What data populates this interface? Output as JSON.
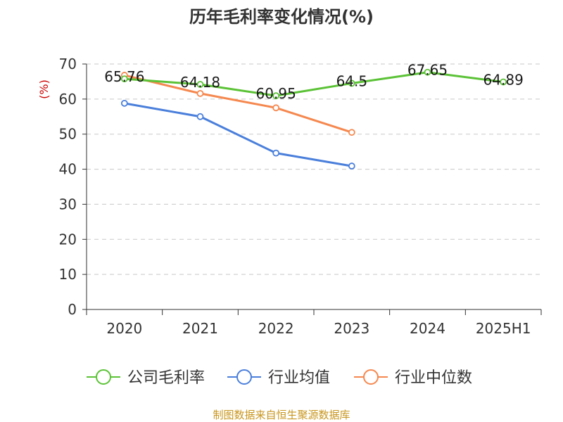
{
  "chart_data": {
    "type": "line",
    "title": "历年毛利率变化情况(%)",
    "ylabel": "(%)",
    "xlabel": "",
    "categories": [
      "2020",
      "2021",
      "2022",
      "2023",
      "2024",
      "2025H1"
    ],
    "ylim": [
      0,
      70
    ],
    "yticks": [
      0,
      10,
      20,
      30,
      40,
      50,
      60,
      70
    ],
    "grid": "horizontal dashed",
    "legend_position": "bottom",
    "series": [
      {
        "name": "公司毛利率",
        "color": "#5bc236",
        "values": [
          65.76,
          64.18,
          60.95,
          64.5,
          67.65,
          64.89
        ],
        "labels": [
          "65.76",
          "64.18",
          "60.95",
          "64.5",
          "67.65",
          "64.89"
        ]
      },
      {
        "name": "行业均值",
        "color": "#4a7fdb",
        "values": [
          58.8,
          55.0,
          44.6,
          40.9,
          null,
          null
        ]
      },
      {
        "name": "行业中位数",
        "color": "#f5884f",
        "values": [
          66.8,
          61.6,
          57.5,
          50.5,
          null,
          null
        ]
      }
    ]
  },
  "footer": {
    "source": "制图数据来自恒生聚源数据库"
  }
}
